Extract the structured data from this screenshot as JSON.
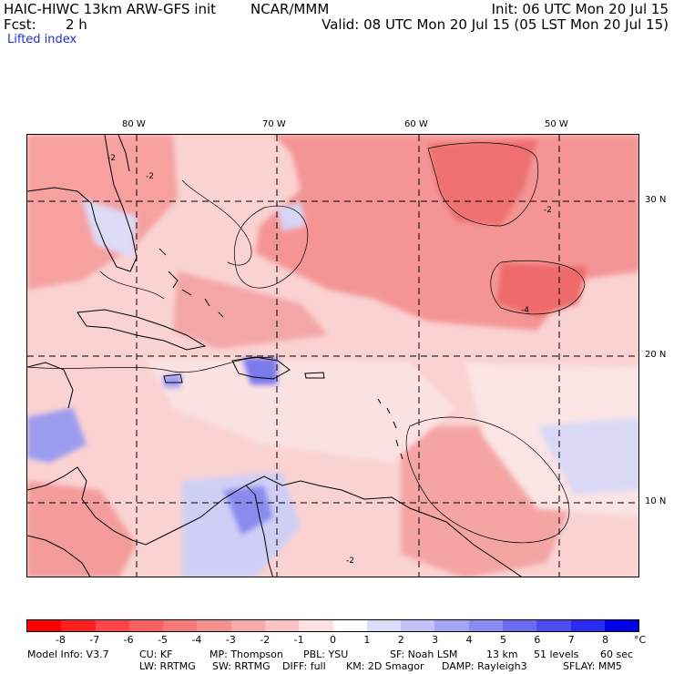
{
  "header": {
    "model_title": "HAIC-HIWC 13km ARW-GFS init",
    "org": "NCAR/MMM",
    "init": "Init: 06 UTC Mon 20 Jul 15",
    "fcst_label": "Fcst:",
    "fcst_value": "2 h",
    "valid": "Valid: 08 UTC Mon 20 Jul 15 (05 LST Mon 20 Jul 15)",
    "field": "Lifted index"
  },
  "map": {
    "lon_labels": [
      "80 W",
      "70 W",
      "60 W",
      "50 W"
    ],
    "lat_labels": [
      "30 N",
      "20 N",
      "10 N"
    ],
    "contour_labels": [
      "-2",
      "-2",
      "-2",
      "-2",
      "-4"
    ],
    "grid_style": "dashed",
    "colors": {
      "neg_strong": "#ff1010",
      "neg": "#f7a0a0",
      "neg_weak": "#fcd6d6",
      "pos_weak": "#dcdcf8",
      "pos": "#9a9af0",
      "pos_strong": "#3b3bf0"
    }
  },
  "colorbar": {
    "labels": [
      "-8",
      "-7",
      "-6",
      "-5",
      "-4",
      "-3",
      "-2",
      "-1",
      "0",
      "1",
      "2",
      "3",
      "4",
      "5",
      "6",
      "7",
      "8"
    ],
    "unit": "°C",
    "colors": [
      "#ff0000",
      "#ff2020",
      "#ff4545",
      "#fa6060",
      "#f77878",
      "#f59090",
      "#f6aaaa",
      "#fac4c4",
      "#fde0e0",
      "#ffffff",
      "#dcdcfb",
      "#c2c2f7",
      "#a5a5f5",
      "#8a8af3",
      "#6c6cf2",
      "#4c4cf0",
      "#2a2af0",
      "#0000e8"
    ]
  },
  "footer": {
    "line1": [
      "Model Info: V3.7",
      "CU: KF",
      "MP: Thompson",
      "PBL: YSU",
      "SF: Noah LSM",
      "13 km",
      "51 levels",
      "60 sec"
    ],
    "line2": [
      "LW: RRTMG",
      "SW: RRTMG",
      "DIFF: full",
      "KM: 2D Smagor",
      "DAMP: Rayleigh3",
      "SFLAY: MM5"
    ]
  }
}
